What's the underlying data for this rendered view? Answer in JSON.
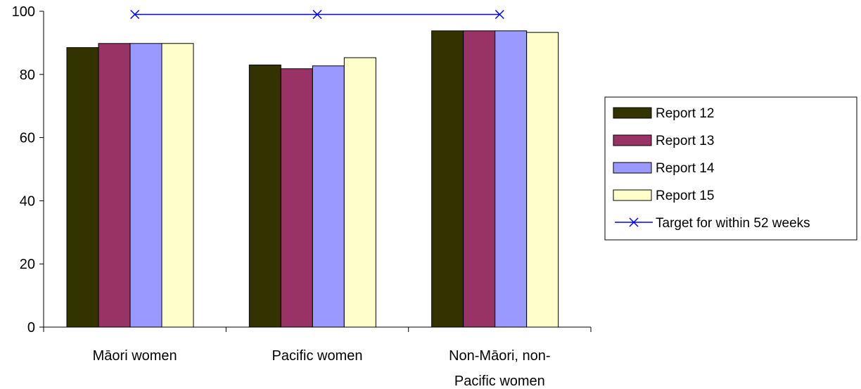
{
  "chart_data": {
    "type": "bar",
    "categories": [
      [
        "Māori women"
      ],
      [
        "Pacific women"
      ],
      [
        "Non-Māori, non-",
        "Pacific women"
      ]
    ],
    "series": [
      {
        "name": "Report 12",
        "values": [
          88.5,
          83.0,
          93.8
        ],
        "color": "#333300"
      },
      {
        "name": "Report 13",
        "values": [
          89.8,
          81.8,
          93.8
        ],
        "color": "#993366"
      },
      {
        "name": "Report 14",
        "values": [
          89.8,
          82.7,
          93.8
        ],
        "color": "#9999ff"
      },
      {
        "name": "Report 15",
        "values": [
          89.8,
          85.3,
          93.3
        ],
        "color": "#ffffcc"
      }
    ],
    "target": {
      "name": "Target for within 52 weeks",
      "value": 99,
      "color": "#0000ff",
      "marker": "x"
    },
    "ylim": [
      0,
      100
    ],
    "yticks": [
      0,
      20,
      40,
      60,
      80,
      100
    ],
    "legend_position": "right",
    "grid": false
  }
}
